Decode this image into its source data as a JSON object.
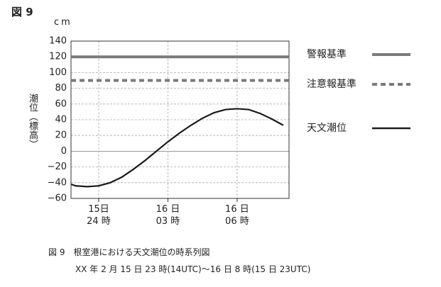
{
  "chart_data": {
    "type": "line",
    "title": "図 9",
    "unit": "cm",
    "ylabel": "潮位（標高）",
    "caption": "図 9　根室港における天文潮位の時系列図",
    "subcaption": "XX 年 2 月 15 日 23 時(14UTC)〜16 日 8 時(15 日 23UTC)",
    "xlim": [
      22.8,
      32.25
    ],
    "xticks": [
      {
        "value": 24,
        "label": "15日\n24 時"
      },
      {
        "value": 27,
        "label": "16 日\n03 時"
      },
      {
        "value": 30,
        "label": "16 日\n06 時"
      }
    ],
    "ylim": [
      -60,
      140
    ],
    "yticks": [
      {
        "value": -60,
        "label": "−60"
      },
      {
        "value": -40,
        "label": "−40"
      },
      {
        "value": -20,
        "label": "−20"
      },
      0,
      20,
      40,
      60,
      80,
      100,
      120,
      140
    ],
    "grid": true,
    "legend": "right",
    "series": [
      {
        "name": "警報基準",
        "color": "#7a7a7a",
        "style": "solid",
        "x": [
          22.8,
          32.25
        ],
        "values": [
          120,
          120
        ]
      },
      {
        "name": "注意報基準",
        "color": "#7a7a7a",
        "style": "dashed",
        "x": [
          22.8,
          32.25
        ],
        "values": [
          90,
          90
        ]
      },
      {
        "name": "天文潮位",
        "color": "#1a1a1a",
        "style": "solid",
        "x": [
          22.8,
          23,
          23.5,
          24,
          24.5,
          25,
          25.5,
          26,
          26.5,
          27,
          27.5,
          28,
          28.5,
          29,
          29.5,
          30,
          30.5,
          31,
          31.5,
          32
        ],
        "values": [
          -42,
          -44,
          -45,
          -44,
          -40,
          -33,
          -23,
          -12,
          0,
          12,
          23,
          33,
          42,
          49,
          53,
          54,
          53,
          48,
          41,
          33
        ]
      }
    ]
  }
}
